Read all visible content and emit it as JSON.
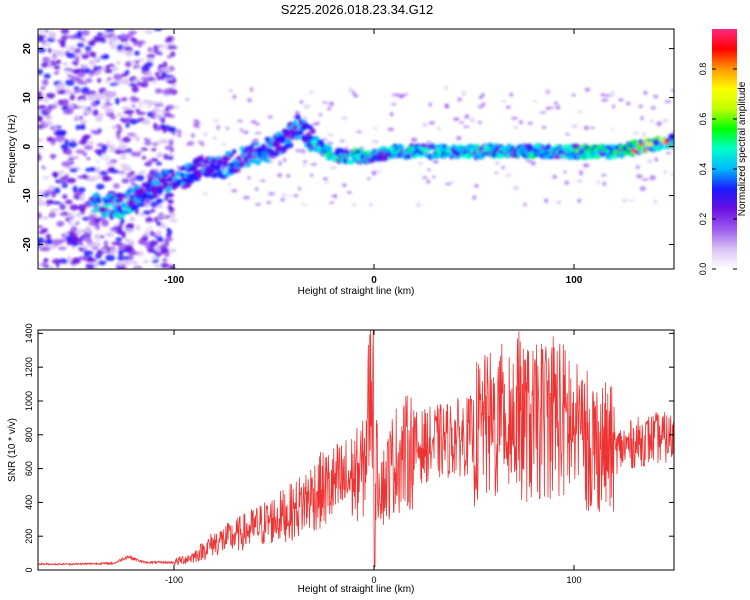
{
  "title": "S225.2026.018.23.34.G12",
  "chart_data": [
    {
      "type": "heatmap",
      "title": "S225.2026.018.23.34.G12",
      "xlabel": "Height of straight line (km)",
      "ylabel": "Frequency (Hz)",
      "xlim": [
        -168,
        150
      ],
      "ylim": [
        -25,
        24
      ],
      "xticks": [
        -100,
        0,
        100
      ],
      "yticks": [
        -20,
        -10,
        0,
        10,
        20
      ],
      "colorbar": {
        "label": "Normalized spectral amplitude",
        "range": [
          0,
          0.96
        ],
        "ticks": [
          0.0,
          0.2,
          0.4,
          0.6,
          0.8
        ],
        "colormap": [
          "#ffffff",
          "#d9c2f5",
          "#9b59f0",
          "#6a0fe0",
          "#1a1aff",
          "#00b8ff",
          "#00ffcc",
          "#00ff00",
          "#bfff00",
          "#ffff00",
          "#ff9900",
          "#ff0000",
          "#ff2a80"
        ]
      },
      "ridge": {
        "x": [
          -138,
          -125,
          -110,
          -95,
          -85,
          -75,
          -65,
          -55,
          -45,
          -38,
          -30,
          -20,
          -10,
          0,
          10,
          20,
          40,
          60,
          80,
          100,
          120,
          135,
          145
        ],
        "frequency": [
          -12,
          -12,
          -8,
          -6,
          -4,
          -4,
          -2,
          -1,
          1,
          4,
          1,
          -2,
          -2,
          -2,
          -1,
          -1,
          -1,
          -1,
          -1,
          -1,
          -1,
          0,
          1
        ]
      }
    },
    {
      "type": "line",
      "xlabel": "Height of straight line (km)",
      "ylabel": "SNR (10 * v/v)",
      "xlim": [
        -168,
        150
      ],
      "ylim": [
        0,
        1420
      ],
      "xticks": [
        -100,
        0,
        100
      ],
      "yticks": [
        0,
        200,
        400,
        600,
        800,
        1000,
        1200,
        1400
      ],
      "color": "#ee3333",
      "series": [
        {
          "name": "SNR",
          "x": [
            -168,
            -150,
            -130,
            -123,
            -115,
            -100,
            -90,
            -80,
            -70,
            -60,
            -50,
            -40,
            -30,
            -20,
            -10,
            -5,
            -1,
            0,
            1,
            5,
            10,
            20,
            30,
            40,
            50,
            60,
            70,
            80,
            90,
            100,
            110,
            120,
            130,
            140,
            150
          ],
          "values": [
            35,
            35,
            40,
            80,
            45,
            45,
            80,
            160,
            200,
            250,
            300,
            350,
            450,
            500,
            550,
            600,
            1200,
            30,
            600,
            500,
            650,
            720,
            750,
            780,
            800,
            850,
            900,
            850,
            950,
            800,
            750,
            700,
            750,
            780,
            780
          ],
          "spike_values": [
            1200,
            1420,
            1350
          ]
        }
      ]
    }
  ]
}
